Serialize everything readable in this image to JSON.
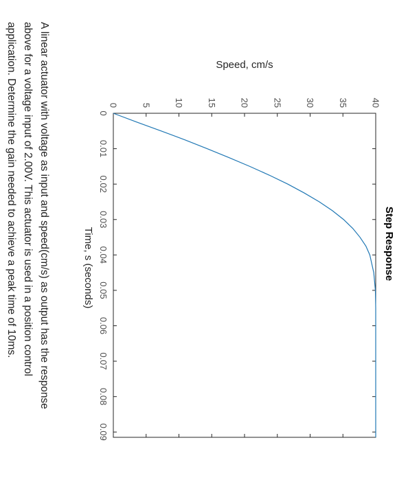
{
  "chart_data": {
    "type": "line",
    "title": "Step Response",
    "xlabel": "Time, s (seconds)",
    "ylabel": "Speed, cm/s",
    "xlim": [
      0,
      0.0915
    ],
    "ylim": [
      0,
      40
    ],
    "xticks": [
      0,
      0.01,
      0.02,
      0.03,
      0.04,
      0.05,
      0.06,
      0.07,
      0.08,
      0.09
    ],
    "xtick_labels": [
      "0",
      "0.01",
      "0.02",
      "0.03",
      "0.04",
      "0.05",
      "0.06",
      "0.07",
      "0.08",
      "0.09"
    ],
    "yticks": [
      0,
      5,
      10,
      15,
      20,
      25,
      30,
      35,
      40
    ],
    "ytick_labels": [
      "0",
      "5",
      "10",
      "15",
      "20",
      "25",
      "30",
      "35",
      "40"
    ],
    "grid": false,
    "line_color": "#1f77b4",
    "series": [
      {
        "x": [
          0,
          0.0025,
          0.005,
          0.0075,
          0.01,
          0.0125,
          0.015,
          0.0175,
          0.02,
          0.0225,
          0.025,
          0.0275,
          0.03,
          0.0325,
          0.035,
          0.0375,
          0.04,
          0.045,
          0.05,
          0.055,
          0.06,
          0.065,
          0.07,
          0.075,
          0.08,
          0.085,
          0.09,
          0.0915
        ],
        "y": [
          0,
          3.6,
          7.3,
          10.9,
          14.3,
          17.6,
          20.8,
          23.8,
          26.6,
          29.1,
          31.4,
          33.4,
          35.1,
          36.5,
          37.6,
          38.5,
          39.1,
          39.7,
          39.95,
          40,
          40,
          40,
          40,
          40,
          40,
          40,
          40,
          40
        ]
      }
    ]
  },
  "caption": {
    "lines": [
      "A linear actuator with voltage as input and speed(cm/s) as output has the response",
      "above for a voltage input of 2.00V. This actuator is used in a position control",
      "application. Determine the gain needed to achieve a peak time of 10ms."
    ]
  }
}
